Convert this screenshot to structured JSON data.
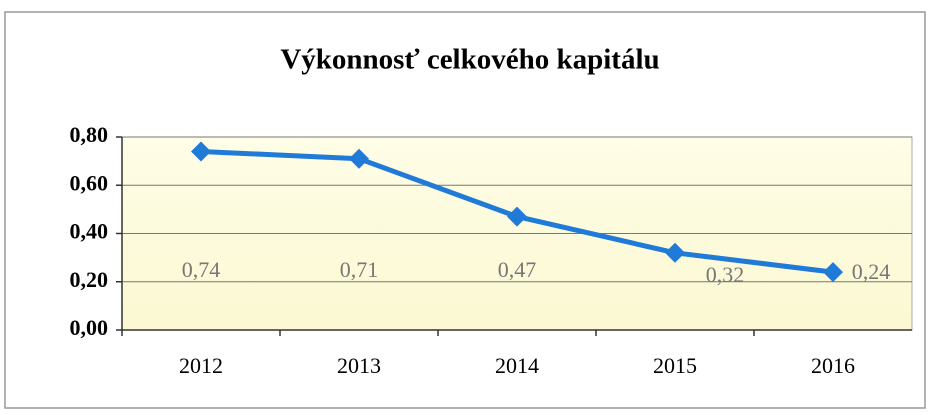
{
  "chart_data": {
    "type": "line",
    "title": "Výkonnosť celkového kapitálu",
    "categories": [
      "2012",
      "2013",
      "2014",
      "2015",
      "2016"
    ],
    "series": [
      {
        "color": "#1f7ad8",
        "values": [
          0.74,
          0.71,
          0.47,
          0.32,
          0.24
        ],
        "value_labels": [
          "0,74",
          "0,71",
          "0,47",
          "0,32",
          "0,24"
        ]
      }
    ],
    "ylim": [
      0,
      0.8
    ],
    "yticks": [
      {
        "value": 0,
        "label": "0,00"
      },
      {
        "value": 0.2,
        "label": "0,20"
      },
      {
        "value": 0.4,
        "label": "0,40"
      },
      {
        "value": 0.6,
        "label": "0,60"
      },
      {
        "value": 0.8,
        "label": "0,80"
      }
    ],
    "grid": true
  }
}
